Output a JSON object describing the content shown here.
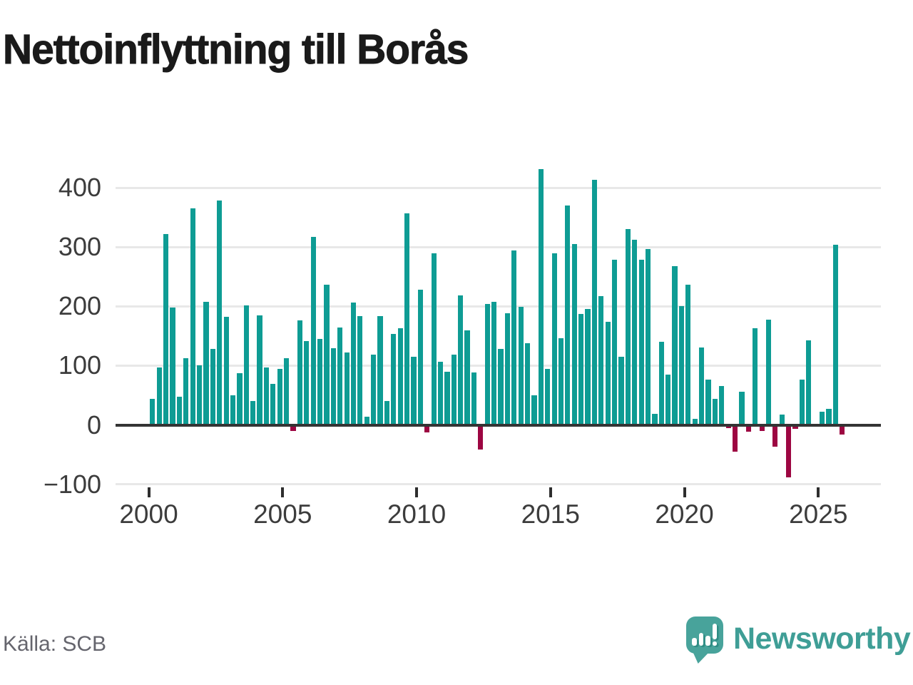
{
  "title": "Nettoinflyttning till Borås",
  "source": "Källa: SCB",
  "logo": {
    "wordmark": "Newsworthy"
  },
  "colors": {
    "positive_bar": "#0e9c94",
    "negative_bar": "#9d0642",
    "gridline": "#e8e8e8",
    "zero_line": "#343434",
    "axis_text": "#3c3c3c",
    "title_text": "#1a1a1a",
    "source_text": "#65656d",
    "logo_teal": "#48a39b"
  },
  "chart_data": {
    "type": "bar",
    "title": "Nettoinflyttning till Borås",
    "frequency": "quarterly",
    "start": "2000-Q1",
    "end": "2025-Q4",
    "xlabel": "",
    "ylabel": "",
    "ylim": [
      -100,
      440
    ],
    "yticks": [
      400,
      300,
      200,
      100,
      0,
      -100
    ],
    "xticks": [
      2000,
      2005,
      2010,
      2015,
      2020,
      2025
    ],
    "grid": true,
    "legend": false,
    "values": [
      44,
      97,
      322,
      198,
      48,
      113,
      365,
      101,
      207,
      128,
      379,
      182,
      50,
      87,
      201,
      40,
      185,
      97,
      69,
      95,
      112,
      -10,
      176,
      141,
      317,
      145,
      237,
      129,
      164,
      122,
      206,
      184,
      14,
      119,
      184,
      40,
      153,
      163,
      357,
      115,
      228,
      -13,
      289,
      106,
      90,
      118,
      219,
      159,
      89,
      -42,
      204,
      207,
      128,
      188,
      294,
      199,
      138,
      50,
      432,
      95,
      289,
      146,
      370,
      305,
      187,
      196,
      413,
      217,
      174,
      278,
      115,
      330,
      312,
      278,
      297,
      19,
      140,
      85,
      268,
      200,
      236,
      10,
      130,
      76,
      44,
      65,
      -6,
      -45,
      56,
      -12,
      163,
      -10,
      177,
      -37,
      17,
      -88,
      -7,
      76,
      143,
      0,
      22,
      27,
      304,
      -16
    ]
  }
}
